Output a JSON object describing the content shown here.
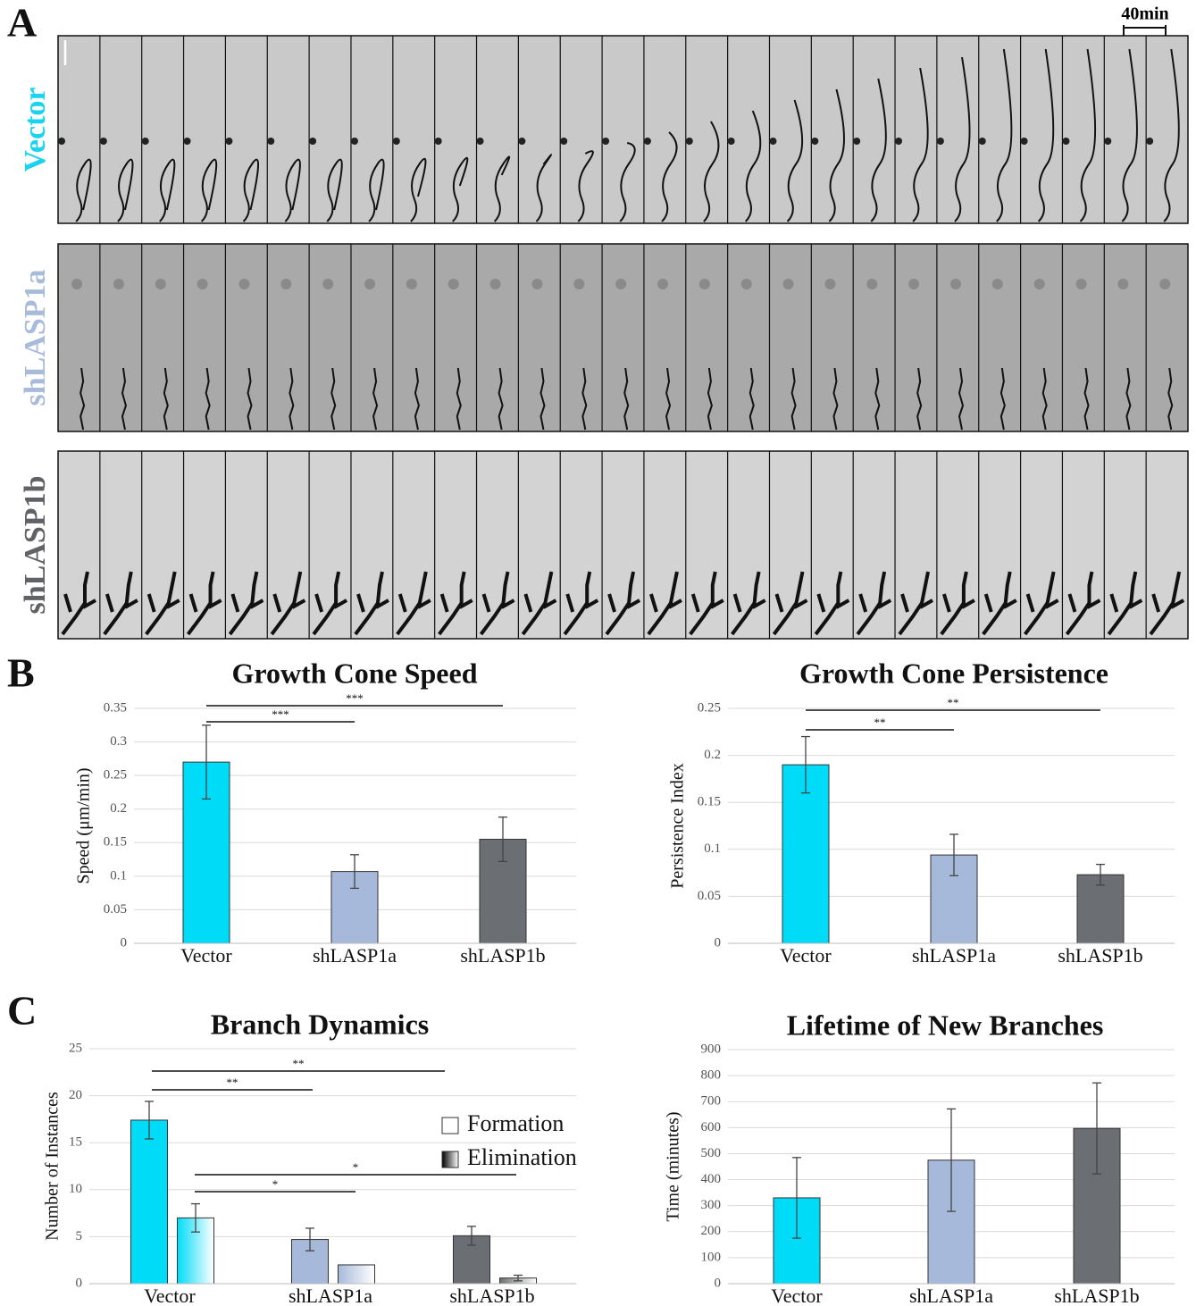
{
  "panel_labels": [
    "A",
    "B",
    "C"
  ],
  "image_rows": [
    {
      "label": "Vector",
      "color": "#1ad3ef"
    },
    {
      "label": "shLASP1a",
      "color": "#a9bbdb"
    },
    {
      "label": "shLASP1b",
      "color": "#5f6266"
    }
  ],
  "scale_label": "40min",
  "chart_data": [
    {
      "type": "bar",
      "title": "Growth Cone Speed",
      "y_label": "Speed (μm/min)",
      "categories": [
        "Vector",
        "shLASP1a",
        "shLASP1b"
      ],
      "values": [
        0.27,
        0.107,
        0.155
      ],
      "errors": [
        0.055,
        0.025,
        0.033
      ],
      "colors": [
        "#00dcf8",
        "#a7b9da",
        "#6b6e72"
      ],
      "ylim": [
        0,
        0.35
      ],
      "yticks": [
        0,
        0.05,
        0.1,
        0.15,
        0.2,
        0.25,
        0.3,
        0.35
      ],
      "grid": true,
      "annotations": [
        "***",
        "***"
      ]
    },
    {
      "type": "bar",
      "title": "Growth Cone Persistence",
      "y_label": "Persistence Index",
      "categories": [
        "Vector",
        "shLASP1a",
        "shLASP1b"
      ],
      "values": [
        0.19,
        0.094,
        0.073
      ],
      "errors": [
        0.03,
        0.022,
        0.011
      ],
      "colors": [
        "#00dcf8",
        "#a7b9da",
        "#6b6e72"
      ],
      "ylim": [
        0,
        0.25
      ],
      "yticks": [
        0,
        0.05,
        0.1,
        0.15,
        0.2,
        0.25
      ],
      "grid": true,
      "annotations": [
        "**",
        "**"
      ]
    },
    {
      "type": "grouped_bar",
      "title": "Branch Dynamics",
      "y_label": "Number of Instances",
      "categories": [
        "Vector",
        "shLASP1a",
        "shLASP1b"
      ],
      "colors": [
        "#00dcf8",
        "#a7b9da",
        "#6b6e72"
      ],
      "series": [
        {
          "name": "Formation",
          "color": "#ffffff",
          "values": [
            17.4,
            4.7,
            5.1
          ],
          "errors": [
            2,
            1.2,
            1
          ]
        },
        {
          "name": "Elimination",
          "color": "#000000",
          "values": [
            7,
            2,
            0.6
          ],
          "errors": [
            1.5,
            0,
            0.3
          ]
        }
      ],
      "legend": "upper right",
      "ylim": [
        0,
        25
      ],
      "yticks": [
        0,
        5,
        10,
        15,
        20,
        25
      ],
      "grid": true,
      "annotations": [
        "**",
        "**",
        "*",
        "*"
      ]
    },
    {
      "type": "bar",
      "title": "Lifetime of New Branches",
      "y_label": "Time (minutes)",
      "categories": [
        "Vector",
        "shLASP1a",
        "shLASP1b"
      ],
      "values": [
        330,
        475,
        597
      ],
      "errors": [
        155,
        197,
        175
      ],
      "colors": [
        "#00dcf8",
        "#a7b9da",
        "#6b6e72"
      ],
      "ylim": [
        0,
        900
      ],
      "yticks": [
        0,
        100,
        200,
        300,
        400,
        500,
        600,
        700,
        800,
        900
      ],
      "grid": true,
      "annotations": []
    }
  ]
}
